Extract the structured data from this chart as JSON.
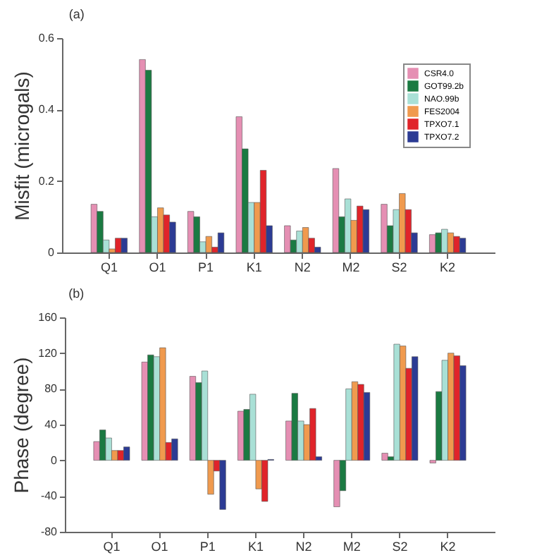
{
  "chart_data": [
    {
      "type": "bar",
      "title": "(a)",
      "ylabel": "Misfit (microgals)",
      "categories": [
        "Q1",
        "O1",
        "P1",
        "K1",
        "N2",
        "M2",
        "S2",
        "K2"
      ],
      "ylim": [
        0,
        0.6
      ],
      "yticks": [
        0,
        0.2,
        0.4,
        0.6
      ],
      "grid": false,
      "legend": "top right",
      "series": [
        {
          "name": "CSR4.0",
          "color": "#e58fb3",
          "values": [
            0.135,
            0.54,
            0.115,
            0.38,
            0.075,
            0.235,
            0.135,
            0.05
          ]
        },
        {
          "name": "GOT99.2b",
          "color": "#1b7a42",
          "values": [
            0.115,
            0.51,
            0.1,
            0.29,
            0.035,
            0.1,
            0.075,
            0.055
          ]
        },
        {
          "name": "NAO.99b",
          "color": "#a9e0d6",
          "values": [
            0.035,
            0.1,
            0.03,
            0.14,
            0.06,
            0.15,
            0.12,
            0.065
          ]
        },
        {
          "name": "FES2004",
          "color": "#f09a4e",
          "values": [
            0.01,
            0.125,
            0.045,
            0.14,
            0.07,
            0.09,
            0.165,
            0.055
          ]
        },
        {
          "name": "TPXO7.1",
          "color": "#e0242a",
          "values": [
            0.04,
            0.105,
            0.015,
            0.23,
            0.04,
            0.13,
            0.12,
            0.045
          ]
        },
        {
          "name": "TPXO7.2",
          "color": "#2c3b94",
          "values": [
            0.04,
            0.085,
            0.055,
            0.075,
            0.015,
            0.12,
            0.055,
            0.04
          ]
        }
      ]
    },
    {
      "type": "bar",
      "title": "(b)",
      "ylabel": "Phase (degree)",
      "categories": [
        "Q1",
        "O1",
        "P1",
        "K1",
        "N2",
        "M2",
        "S2",
        "K2"
      ],
      "ylim": [
        -80,
        160
      ],
      "yticks": [
        -80,
        -40,
        0,
        40,
        80,
        120,
        160
      ],
      "grid": false,
      "legend": false,
      "series": [
        {
          "color": "#e58fb3",
          "values": [
            21,
            110,
            94,
            55,
            44,
            -52,
            8,
            -3
          ]
        },
        {
          "color": "#1b7a42",
          "values": [
            34,
            118,
            87,
            57,
            75,
            -34,
            4,
            77
          ]
        },
        {
          "color": "#a9e0d6",
          "values": [
            25,
            116,
            100,
            74,
            44,
            80,
            130,
            112
          ]
        },
        {
          "color": "#f09a4e",
          "values": [
            11,
            126,
            -38,
            -32,
            40,
            88,
            128,
            120
          ]
        },
        {
          "color": "#e0242a",
          "values": [
            11,
            20,
            -12,
            -46,
            58,
            85,
            103,
            117
          ]
        },
        {
          "color": "#2c3b94",
          "values": [
            15,
            24,
            -55,
            1,
            4,
            76,
            116,
            106
          ]
        }
      ]
    }
  ]
}
